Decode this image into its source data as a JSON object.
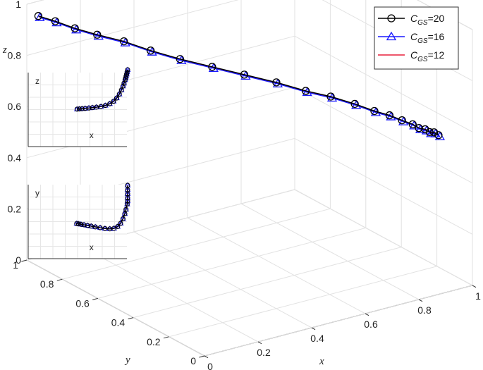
{
  "chart_data": {
    "type": "line",
    "projection": "3d",
    "xlabel": "x",
    "ylabel": "y",
    "zlabel": "z",
    "xlim": [
      0,
      1
    ],
    "ylim": [
      0,
      1
    ],
    "zlim": [
      0,
      1
    ],
    "x_ticks": [
      "0",
      "0.2",
      "0.4",
      "0.6",
      "0.8",
      "1"
    ],
    "y_ticks": [
      "0",
      "0.2",
      "0.4",
      "0.6",
      "0.8",
      "1"
    ],
    "z_ticks": [
      "0",
      "0.2",
      "0.4",
      "0.6",
      "0.8",
      "1"
    ],
    "grid": true,
    "legend_position": "top-right",
    "series": [
      {
        "name": "C_GS=20",
        "legend_main": "C",
        "legend_sub": "GS",
        "legend_value": "=20",
        "color": "#000000",
        "marker": "circle",
        "points": [
          [
            0.01,
            0.95,
            0.97
          ],
          [
            0.04,
            0.9,
            0.96
          ],
          [
            0.08,
            0.85,
            0.94
          ],
          [
            0.13,
            0.8,
            0.92
          ],
          [
            0.19,
            0.74,
            0.9
          ],
          [
            0.25,
            0.68,
            0.87
          ],
          [
            0.32,
            0.62,
            0.84
          ],
          [
            0.4,
            0.56,
            0.81
          ],
          [
            0.48,
            0.5,
            0.78
          ],
          [
            0.56,
            0.44,
            0.75
          ],
          [
            0.63,
            0.38,
            0.72
          ],
          [
            0.69,
            0.33,
            0.7
          ],
          [
            0.74,
            0.27,
            0.68
          ],
          [
            0.78,
            0.22,
            0.66
          ],
          [
            0.81,
            0.18,
            0.65
          ],
          [
            0.83,
            0.14,
            0.64
          ],
          [
            0.85,
            0.11,
            0.63
          ],
          [
            0.86,
            0.09,
            0.62
          ],
          [
            0.87,
            0.07,
            0.62
          ],
          [
            0.88,
            0.06,
            0.61
          ],
          [
            0.89,
            0.05,
            0.61
          ],
          [
            0.9,
            0.04,
            0.6
          ]
        ]
      },
      {
        "name": "C_GS=16",
        "legend_main": "C",
        "legend_sub": "GS",
        "legend_value": "=16",
        "color": "#1a1aff",
        "marker": "triangle",
        "points": [
          [
            0.01,
            0.95,
            0.97
          ],
          [
            0.04,
            0.9,
            0.96
          ],
          [
            0.08,
            0.85,
            0.94
          ],
          [
            0.13,
            0.8,
            0.92
          ],
          [
            0.19,
            0.74,
            0.9
          ],
          [
            0.25,
            0.68,
            0.87
          ],
          [
            0.32,
            0.62,
            0.84
          ],
          [
            0.4,
            0.56,
            0.81
          ],
          [
            0.48,
            0.5,
            0.78
          ],
          [
            0.56,
            0.44,
            0.75
          ],
          [
            0.63,
            0.38,
            0.72
          ],
          [
            0.69,
            0.33,
            0.7
          ],
          [
            0.74,
            0.27,
            0.68
          ],
          [
            0.78,
            0.22,
            0.66
          ],
          [
            0.81,
            0.18,
            0.65
          ],
          [
            0.83,
            0.14,
            0.64
          ],
          [
            0.85,
            0.11,
            0.63
          ],
          [
            0.86,
            0.09,
            0.62
          ],
          [
            0.87,
            0.07,
            0.62
          ],
          [
            0.88,
            0.06,
            0.61
          ],
          [
            0.89,
            0.05,
            0.61
          ],
          [
            0.9,
            0.04,
            0.6
          ]
        ]
      },
      {
        "name": "C_GS=12",
        "legend_main": "C",
        "legend_sub": "GS",
        "legend_value": "=12",
        "color": "#e8203c",
        "marker": "none",
        "points": [
          [
            0.01,
            0.95,
            0.97
          ],
          [
            0.04,
            0.9,
            0.96
          ],
          [
            0.08,
            0.85,
            0.94
          ],
          [
            0.13,
            0.8,
            0.92
          ],
          [
            0.19,
            0.74,
            0.9
          ],
          [
            0.25,
            0.68,
            0.87
          ],
          [
            0.32,
            0.62,
            0.84
          ],
          [
            0.4,
            0.56,
            0.81
          ],
          [
            0.48,
            0.5,
            0.78
          ],
          [
            0.56,
            0.44,
            0.75
          ],
          [
            0.63,
            0.38,
            0.72
          ],
          [
            0.69,
            0.33,
            0.7
          ],
          [
            0.74,
            0.27,
            0.68
          ],
          [
            0.78,
            0.22,
            0.66
          ],
          [
            0.81,
            0.18,
            0.65
          ],
          [
            0.83,
            0.14,
            0.64
          ],
          [
            0.85,
            0.11,
            0.63
          ],
          [
            0.86,
            0.09,
            0.62
          ],
          [
            0.87,
            0.07,
            0.62
          ],
          [
            0.88,
            0.06,
            0.61
          ],
          [
            0.89,
            0.05,
            0.61
          ],
          [
            0.9,
            0.04,
            0.6
          ]
        ]
      }
    ],
    "insets": [
      {
        "projection": "x-z",
        "xlabel": "x",
        "ylabel": "z"
      },
      {
        "projection": "x-y",
        "xlabel": "x",
        "ylabel": "y"
      }
    ]
  }
}
